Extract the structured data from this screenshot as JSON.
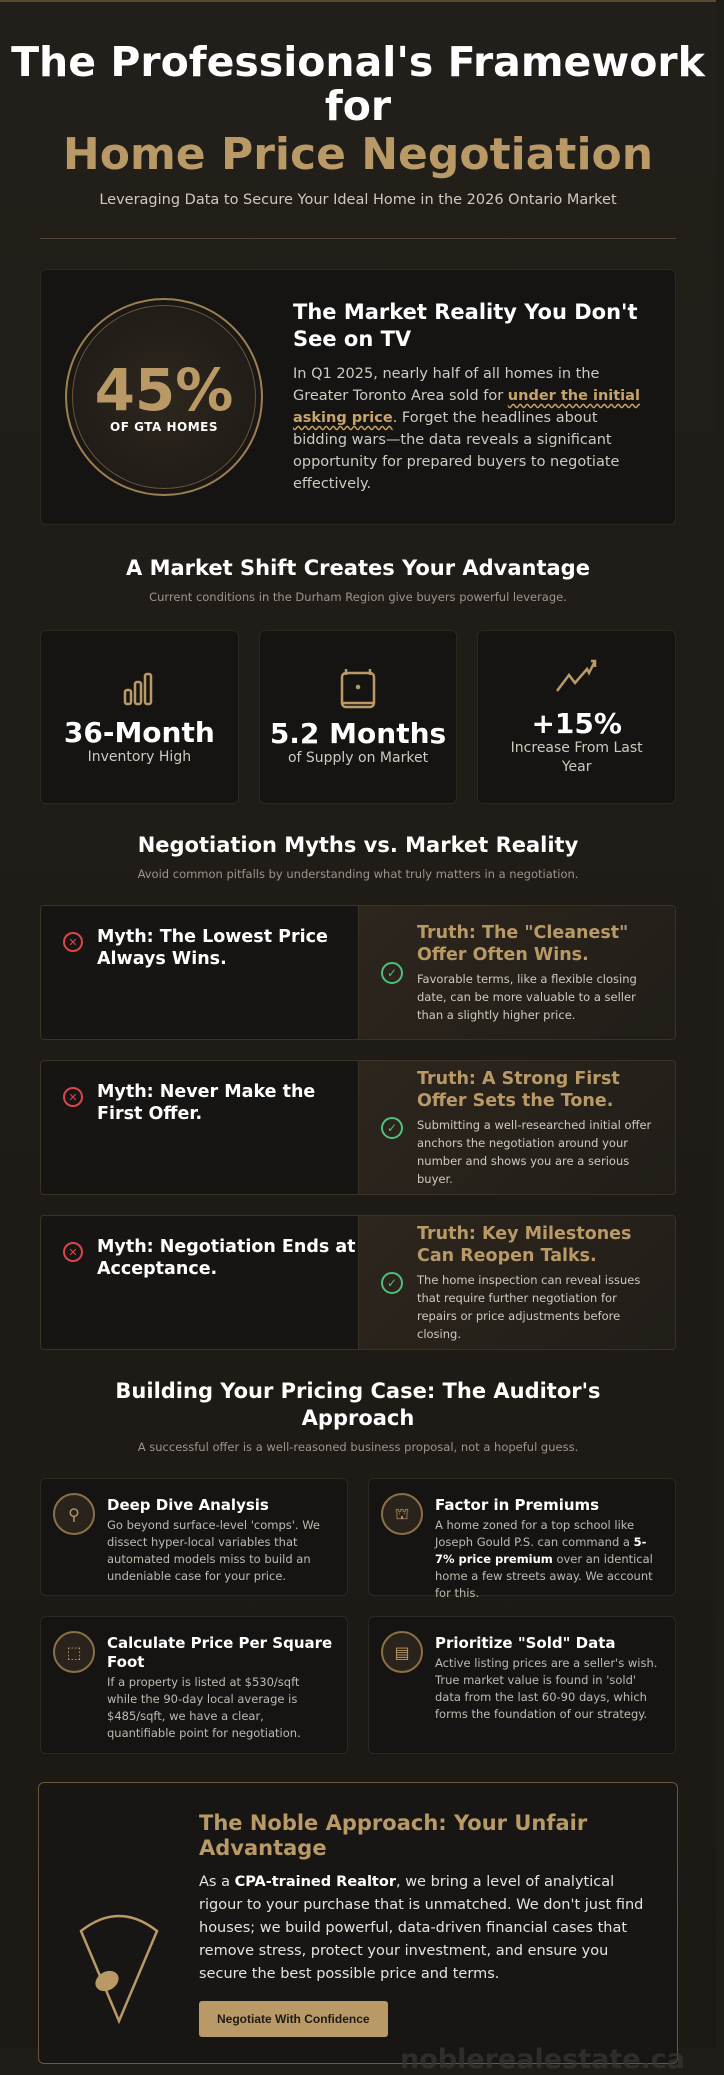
{
  "header": {
    "title_line1": "The Professional's Framework",
    "title_line2": "for",
    "title_highlight": "Home Price Negotiation",
    "subtitle": "Leveraging Data to Secure Your Ideal Home in the 2026 Ontario Market"
  },
  "hero": {
    "stat": "45%",
    "stat_label": "OF GTA HOMES",
    "title": "The Market Reality You Don't See on TV",
    "text_before": "In Q1 2025, nearly half of all homes in the Greater Toronto Area sold for ",
    "highlight": "under the initial asking price",
    "text_after": ". Forget the headlines about bidding wars—the data reveals a significant opportunity for prepared buyers to negotiate effectively."
  },
  "shift": {
    "title": "A Market Shift Creates Your Advantage",
    "subtitle": "Current conditions in the Durham Region give buyers powerful leverage.",
    "stats": [
      {
        "icon": "bar-chart-icon",
        "value": "36-Month",
        "label": "Inventory High"
      },
      {
        "icon": "calendar-icon",
        "value": "5.2 Months",
        "label": "of Supply on Market"
      },
      {
        "icon": "trend-up-icon",
        "value": "+15%",
        "label": "Increase From Last Year"
      }
    ]
  },
  "myths": {
    "title": "Negotiation Myths vs. Market Reality",
    "subtitle": "Avoid common pitfalls by understanding what truly matters in a negotiation.",
    "items": [
      {
        "myth": "Myth: The Lowest Price Always Wins.",
        "truth": "Truth: The \"Cleanest\" Offer Often Wins.",
        "detail": "Favorable terms, like a flexible closing date, can be more valuable to a seller than a slightly higher price."
      },
      {
        "myth": "Myth: Never Make the First Offer.",
        "truth": "Truth: A Strong First Offer Sets the Tone.",
        "detail": "Submitting a well-researched initial offer anchors the negotiation around your number and shows you are a serious buyer."
      },
      {
        "myth": "Myth: Negotiation Ends at Acceptance.",
        "truth": "Truth: Key Milestones Can Reopen Talks.",
        "detail": "The home inspection can reveal issues that require further negotiation for repairs or price adjustments before closing."
      }
    ]
  },
  "pricing": {
    "title": "Building Your Pricing Case: The Auditor's Approach",
    "subtitle": "A successful offer is a well-reasoned business proposal, not a hopeful guess.",
    "cards": [
      {
        "icon": "search-icon",
        "title": "Deep Dive Analysis",
        "text": "Go beyond surface-level 'comps'. We dissect hyper-local variables that automated models miss to build an undeniable case for your price."
      },
      {
        "icon": "school-icon",
        "title": "Factor in Premiums",
        "text_before": "A home zoned for a top school like Joseph Gould P.S. can command a ",
        "bold": "5-7% price premium",
        "text_after": " over an identical home a few streets away. We account for this."
      },
      {
        "icon": "area-icon",
        "title": "Calculate Price Per Square Foot",
        "text": "If a property is listed at $530/sqft while the 90-day local average is $485/sqft, we have a clear, quantifiable point for negotiation."
      },
      {
        "icon": "document-icon",
        "title": "Prioritize \"Sold\" Data",
        "text": "Active listing prices are a seller's wish. True market value is found in 'sold' data from the last 60-90 days, which forms the foundation of our strategy."
      }
    ]
  },
  "noble": {
    "title": "The Noble Approach: Your Unfair Advantage",
    "text_before": "As a ",
    "bold": "CPA-trained Realtor",
    "text_after": ", we bring a level of analytical rigour to your purchase that is unmatched. We don't just find houses; we build powerful, data-driven financial cases that remove stress, protect your investment, and ensure you secure the best possible price and terms.",
    "button": "Negotiate With Confidence",
    "watermark": "noblerealestate.ca"
  },
  "colors": {
    "gold": "#b99a67",
    "background": "#201c17",
    "myth_red": "#d8464a",
    "truth_green": "#4fc07a"
  }
}
